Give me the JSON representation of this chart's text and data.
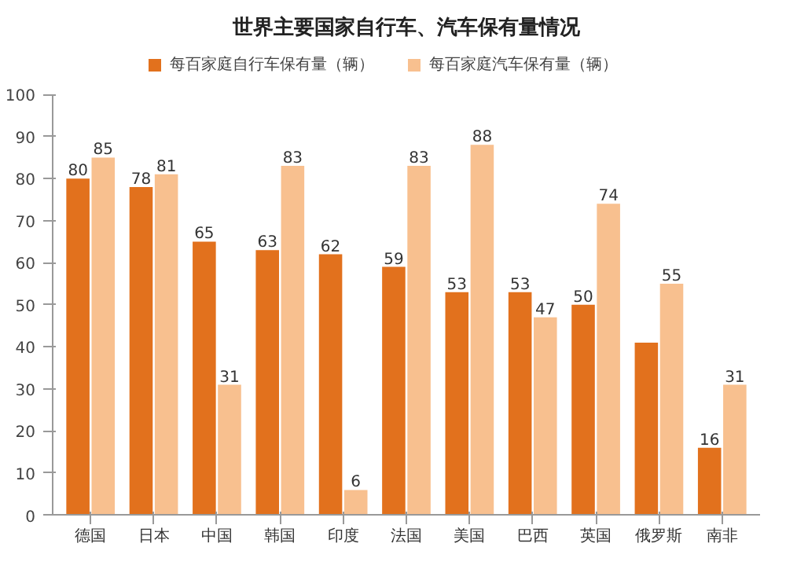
{
  "chart_data": {
    "type": "bar",
    "title": "世界主要国家自行车、汽车保有量情况",
    "categories": [
      "德国",
      "日本",
      "中国",
      "韩国",
      "印度",
      "法国",
      "美国",
      "巴西",
      "英国",
      "俄罗斯",
      "南非"
    ],
    "series": [
      {
        "name": "每百家庭自行车保有量（辆）",
        "color": "#e2711d",
        "values": [
          80,
          78,
          65,
          63,
          62,
          59,
          53,
          53,
          50,
          41,
          16
        ],
        "value_labels": [
          "80",
          "78",
          "65",
          "63",
          "62",
          "59",
          "53",
          "53",
          "50",
          null,
          "16"
        ]
      },
      {
        "name": "每百家庭汽车保有量（辆）",
        "color": "#f8c08f",
        "values": [
          85,
          81,
          31,
          83,
          6,
          83,
          88,
          47,
          74,
          55,
          31
        ],
        "value_labels": [
          "85",
          "81",
          "31",
          "83",
          "6",
          "83",
          "88",
          "47",
          "74",
          "55",
          "31"
        ]
      }
    ],
    "ylim": [
      0,
      100
    ],
    "yticks": [
      0,
      10,
      20,
      30,
      40,
      50,
      60,
      70,
      80,
      90,
      100
    ],
    "grid": false,
    "legend": "top"
  }
}
